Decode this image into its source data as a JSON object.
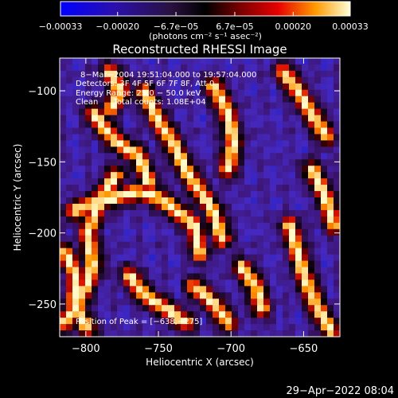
{
  "chart_data": {
    "type": "heatmap",
    "title": "Reconstructed RHESSI Image",
    "xlabel": "Heliocentric X (arcsec)",
    "ylabel": "Heliocentric Y (arcsec)",
    "xlim": [
      -818,
      -625
    ],
    "ylim": [
      -273,
      -77
    ],
    "x_ticks": [
      -800,
      -750,
      -700,
      -650
    ],
    "y_ticks": [
      -250,
      -200,
      -150,
      -100
    ],
    "x_tick_labels": [
      "−800",
      "−750",
      "−700",
      "−650"
    ],
    "y_tick_labels": [
      "−250",
      "−200",
      "−150",
      "−100"
    ],
    "colorbar": {
      "range": [
        -0.00033,
        0.00033
      ],
      "ticks": [
        -0.00033,
        -0.0002,
        -6.7e-05,
        6.7e-05,
        0.0002,
        0.00033
      ],
      "tick_labels": [
        "−0.00033",
        "−0.00020",
        "−6.7e−05",
        "6.7e−05",
        "0.00020",
        "0.00033"
      ],
      "unit": "(photons cm⁻² s⁻¹ asec⁻²)"
    },
    "annotations": [
      "8−Mar−2004 19:51:04.000 to 19:57:04.000",
      "Detectors: 3F 4F 5F 6F 7F 8F, Att 0",
      "Energy Range: 25.0 − 50.0 keV",
      "Clean      Total counts: 1.08E+04"
    ],
    "peak_label": "Position of Peak = [−638,−275]",
    "peak": {
      "x": -638,
      "y": -275
    },
    "image_description": "CLEAN image with bright orange/yellow ridge structures on a dark purple/blue background"
  },
  "footer": {
    "timestamp": "29−Apr−2022 08:04"
  }
}
